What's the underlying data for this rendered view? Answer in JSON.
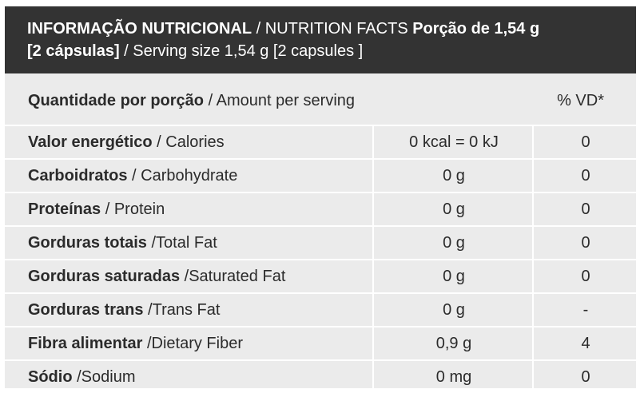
{
  "header": {
    "title_pt": "INFORMAÇÃO NUTRICIONAL",
    "title_sep": " / ",
    "title_en": "NUTRITION FACTS",
    "serving_pt": " Porção de 1,54 g",
    "serving_pt_line2": "[2 cápsulas]",
    "serving_sep": " / ",
    "serving_en": "Serving size 1,54 g [2 capsules ]"
  },
  "amount": {
    "label_pt": "Quantidade por porção",
    "label_sep": " / ",
    "label_en": "Amount per serving",
    "vd_header": "% VD*"
  },
  "rows": [
    {
      "name_pt": "Valor energético",
      "sep": " / ",
      "name_en": "Calories",
      "qty": "0 kcal = 0 kJ",
      "vd": "0"
    },
    {
      "name_pt": "Carboidratos",
      "sep": " / ",
      "name_en": "Carbohydrate",
      "qty": "0 g",
      "vd": "0"
    },
    {
      "name_pt": "Proteínas",
      "sep": " / ",
      "name_en": "Protein",
      "qty": "0 g",
      "vd": "0"
    },
    {
      "name_pt": "Gorduras totais",
      "sep": " /",
      "name_en": "Total Fat",
      "qty": "0 g",
      "vd": "0"
    },
    {
      "name_pt": "Gorduras saturadas",
      "sep": " /",
      "name_en": "Saturated Fat",
      "qty": "0 g",
      "vd": "0"
    },
    {
      "name_pt": "Gorduras trans",
      "sep": " /",
      "name_en": "Trans Fat",
      "qty": "0 g",
      "vd": "-"
    },
    {
      "name_pt": "Fibra alimentar",
      "sep": " /",
      "name_en": "Dietary Fiber",
      "qty": "0,9 g",
      "vd": "4"
    },
    {
      "name_pt": "Sódio",
      "sep": " /",
      "name_en": "Sodium",
      "qty": "0 mg",
      "vd": "0"
    }
  ]
}
